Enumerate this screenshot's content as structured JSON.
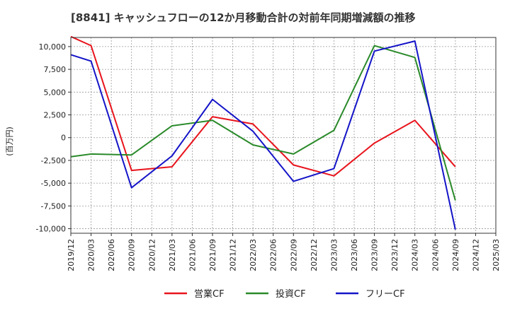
{
  "chart_data": {
    "type": "line",
    "title": "[8841]  キャッシュフローの12か月移動合計の対前年同期増減額の推移",
    "ylabel": "(百万円)",
    "xlabel": "",
    "ylim": [
      -10500,
      11000
    ],
    "y_ticks": [
      10000,
      7500,
      5000,
      2500,
      0,
      -2500,
      -5000,
      -7500,
      -10000
    ],
    "y_tick_labels": [
      "10,000",
      "7,500",
      "5,000",
      "2,500",
      "0",
      "-2,500",
      "-5,000",
      "-7,500",
      "-10,000"
    ],
    "x_tick_labels": [
      "2019/12",
      "2020/03",
      "2020/06",
      "2020/09",
      "2020/12",
      "2021/03",
      "2021/06",
      "2021/09",
      "2021/12",
      "2022/03",
      "2022/06",
      "2022/09",
      "2022/12",
      "2023/03",
      "2023/06",
      "2023/09",
      "2023/12",
      "2024/03",
      "2024/06",
      "2024/09",
      "2024/12",
      "2025/03"
    ],
    "grid": true,
    "legend_position": "bottom",
    "series": [
      {
        "name": "営業CF",
        "color": "#e8141c",
        "points": [
          {
            "x": "2019/12",
            "y": 11100
          },
          {
            "x": "2020/03",
            "y": 10100
          },
          {
            "x": "2020/09",
            "y": -3600
          },
          {
            "x": "2021/03",
            "y": -3200
          },
          {
            "x": "2021/09",
            "y": 2300
          },
          {
            "x": "2022/03",
            "y": 1500
          },
          {
            "x": "2022/09",
            "y": -3000
          },
          {
            "x": "2023/03",
            "y": -4200
          },
          {
            "x": "2023/09",
            "y": -600
          },
          {
            "x": "2024/03",
            "y": 1900
          },
          {
            "x": "2024/09",
            "y": -3200
          }
        ]
      },
      {
        "name": "投資CF",
        "color": "#2a8a2a",
        "points": [
          {
            "x": "2019/12",
            "y": -2100
          },
          {
            "x": "2020/03",
            "y": -1800
          },
          {
            "x": "2020/09",
            "y": -1900
          },
          {
            "x": "2021/03",
            "y": 1300
          },
          {
            "x": "2021/09",
            "y": 1900
          },
          {
            "x": "2022/03",
            "y": -800
          },
          {
            "x": "2022/09",
            "y": -1800
          },
          {
            "x": "2023/03",
            "y": 800
          },
          {
            "x": "2023/09",
            "y": 10100
          },
          {
            "x": "2024/03",
            "y": 8800
          },
          {
            "x": "2024/09",
            "y": -6900
          }
        ]
      },
      {
        "name": "フリーCF",
        "color": "#1414c8",
        "points": [
          {
            "x": "2019/12",
            "y": 9100
          },
          {
            "x": "2020/03",
            "y": 8400
          },
          {
            "x": "2020/09",
            "y": -5500
          },
          {
            "x": "2021/03",
            "y": -2000
          },
          {
            "x": "2021/09",
            "y": 4200
          },
          {
            "x": "2022/03",
            "y": 700
          },
          {
            "x": "2022/09",
            "y": -4800
          },
          {
            "x": "2023/03",
            "y": -3400
          },
          {
            "x": "2023/09",
            "y": 9500
          },
          {
            "x": "2024/03",
            "y": 10600
          },
          {
            "x": "2024/09",
            "y": -10100
          }
        ]
      }
    ]
  }
}
